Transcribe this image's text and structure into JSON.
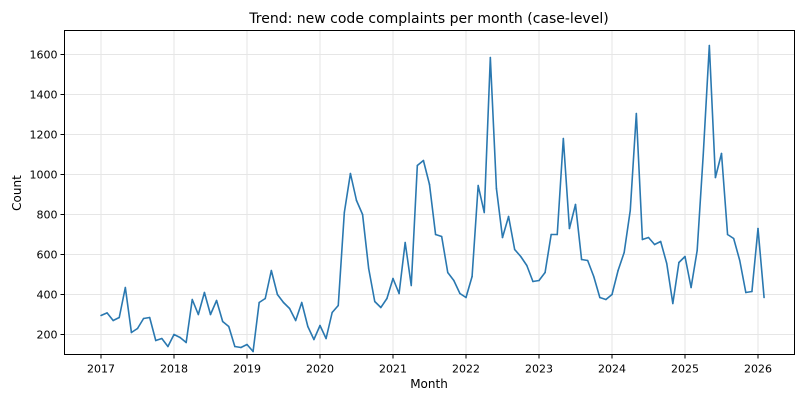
{
  "chart_data": {
    "type": "line",
    "title": "Trend: new code complaints per month (case-level)",
    "xlabel": "Month",
    "ylabel": "Count",
    "grid": true,
    "x_ticks": [
      "2017",
      "2018",
      "2019",
      "2020",
      "2021",
      "2022",
      "2023",
      "2024",
      "2025",
      "2026"
    ],
    "y_ticks": [
      200,
      400,
      600,
      800,
      1000,
      1200,
      1400,
      1600
    ],
    "xlim": [
      "2016-07",
      "2026-07"
    ],
    "ylim": [
      100,
      1720
    ],
    "series": [
      {
        "color": "#2a78b0",
        "x": [
          "2017-01",
          "2017-02",
          "2017-03",
          "2017-04",
          "2017-05",
          "2017-06",
          "2017-07",
          "2017-08",
          "2017-09",
          "2017-10",
          "2017-11",
          "2017-12",
          "2018-01",
          "2018-02",
          "2018-03",
          "2018-04",
          "2018-05",
          "2018-06",
          "2018-07",
          "2018-08",
          "2018-09",
          "2018-10",
          "2018-11",
          "2018-12",
          "2019-01",
          "2019-02",
          "2019-03",
          "2019-04",
          "2019-05",
          "2019-06",
          "2019-07",
          "2019-08",
          "2019-09",
          "2019-10",
          "2019-11",
          "2019-12",
          "2020-01",
          "2020-02",
          "2020-03",
          "2020-04",
          "2020-05",
          "2020-06",
          "2020-07",
          "2020-08",
          "2020-09",
          "2020-10",
          "2020-11",
          "2020-12",
          "2021-01",
          "2021-02",
          "2021-03",
          "2021-04",
          "2021-05",
          "2021-06",
          "2021-07",
          "2021-08",
          "2021-09",
          "2021-10",
          "2021-11",
          "2021-12",
          "2022-01",
          "2022-02",
          "2022-03",
          "2022-04",
          "2022-05",
          "2022-06",
          "2022-07",
          "2022-08",
          "2022-09",
          "2022-10",
          "2022-11",
          "2022-12",
          "2023-01",
          "2023-02",
          "2023-03",
          "2023-04",
          "2023-05",
          "2023-06",
          "2023-07",
          "2023-08",
          "2023-09",
          "2023-10",
          "2023-11",
          "2023-12",
          "2024-01",
          "2024-02",
          "2024-03",
          "2024-04",
          "2024-05",
          "2024-06",
          "2024-07",
          "2024-08",
          "2024-09",
          "2024-10",
          "2024-11",
          "2024-12",
          "2025-01",
          "2025-02",
          "2025-03",
          "2025-04",
          "2025-05",
          "2025-06",
          "2025-07",
          "2025-08",
          "2025-09",
          "2025-10",
          "2025-11",
          "2025-12",
          "2026-01",
          "2026-02"
        ],
        "y": [
          295,
          308,
          270,
          285,
          435,
          210,
          230,
          280,
          285,
          170,
          180,
          140,
          200,
          185,
          160,
          375,
          300,
          410,
          300,
          370,
          265,
          240,
          140,
          135,
          150,
          115,
          360,
          380,
          520,
          400,
          360,
          330,
          270,
          360,
          240,
          175,
          245,
          180,
          310,
          345,
          810,
          1005,
          870,
          800,
          530,
          365,
          335,
          380,
          480,
          405,
          660,
          445,
          1045,
          1070,
          950,
          700,
          690,
          510,
          470,
          405,
          385,
          490,
          945,
          810,
          1585,
          930,
          685,
          790,
          625,
          590,
          545,
          465,
          470,
          510,
          700,
          700,
          1180,
          730,
          850,
          575,
          570,
          490,
          385,
          375,
          400,
          520,
          610,
          820,
          1305,
          675,
          685,
          650,
          665,
          555,
          355,
          560,
          590,
          435,
          620,
          1100,
          1645,
          985,
          1105,
          700,
          680,
          570,
          410,
          415,
          730,
          385
        ]
      }
    ]
  }
}
